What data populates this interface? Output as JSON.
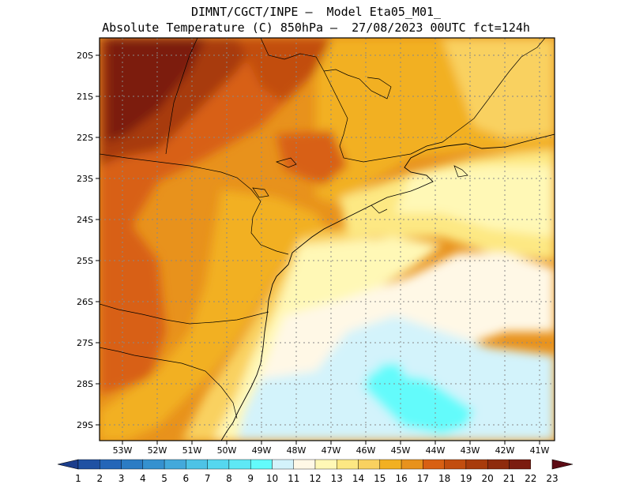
{
  "header": {
    "line1": "DIMNT/CGCT/INPE –  Model Eta05_M01_",
    "line2": "Absolute Temperature (C) 850hPa –  27/08/2023 00UTC fct=124h"
  },
  "map": {
    "lat_labels": [
      "20S",
      "21S",
      "22S",
      "23S",
      "24S",
      "25S",
      "26S",
      "27S",
      "28S",
      "29S"
    ],
    "lon_labels": [
      "53W",
      "52W",
      "51W",
      "50W",
      "49W",
      "48W",
      "47W",
      "46W",
      "45W",
      "44W",
      "43W",
      "42W",
      "41W"
    ]
  },
  "colorbar": {
    "labels": [
      "1",
      "2",
      "3",
      "4",
      "5",
      "6",
      "7",
      "8",
      "9",
      "10",
      "11",
      "12",
      "13",
      "14",
      "15",
      "16",
      "17",
      "18",
      "19",
      "20",
      "21",
      "22",
      "23"
    ],
    "colors": [
      "#1c3e8c",
      "#1f51a3",
      "#2466b8",
      "#2b7cc4",
      "#3591cf",
      "#43a9db",
      "#4dc3e6",
      "#55d7ef",
      "#5ee8f5",
      "#63fbfb",
      "#d3f3fb",
      "#fff8e6",
      "#fff8b6",
      "#fde883",
      "#f9d160",
      "#f2b021",
      "#e8921c",
      "#d86013",
      "#c24d0e",
      "#a83b0b",
      "#8e2b0d",
      "#7b1c10",
      "#5c0b14"
    ]
  },
  "colors": {
    "frame": "#000000",
    "grid": "#888888",
    "background": "#ffffff"
  }
}
